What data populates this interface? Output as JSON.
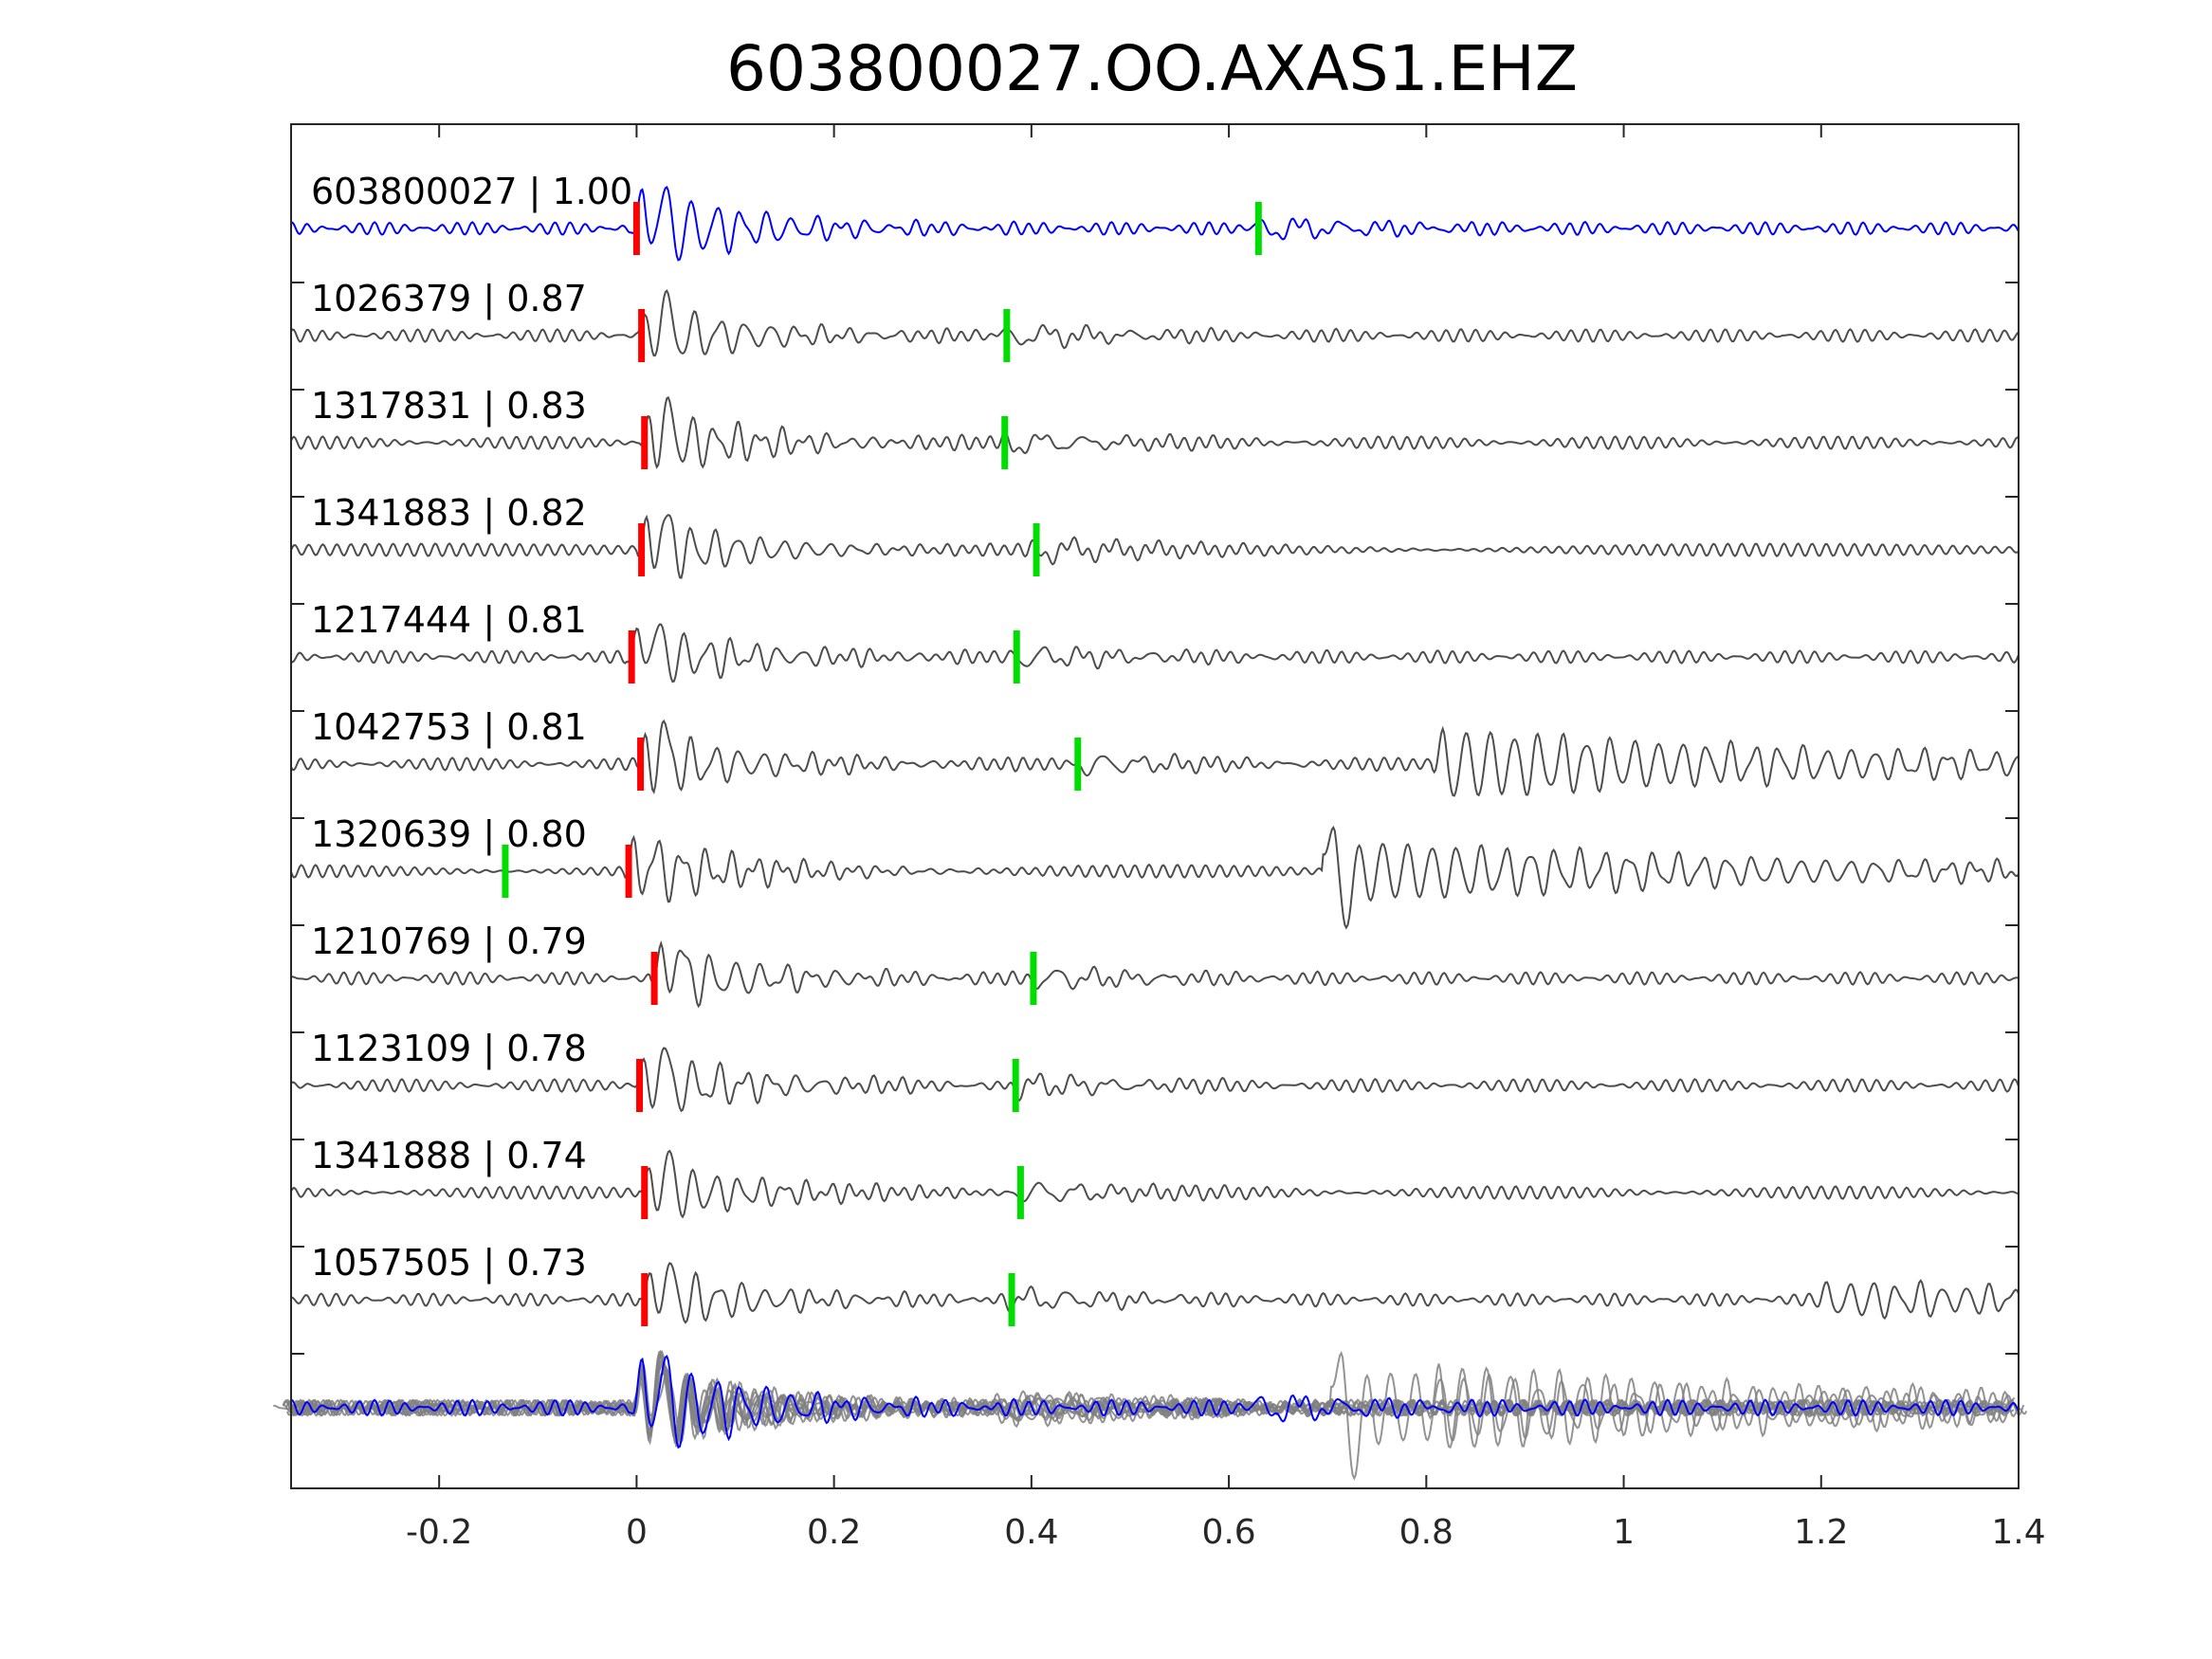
{
  "chart_data": {
    "type": "line",
    "title": "603800027.OO.AXAS1.EHZ",
    "xlabel": "",
    "ylabel": "",
    "xlim": [
      -0.35,
      1.4
    ],
    "x_ticks": [
      -0.2,
      0,
      0.2,
      0.4,
      0.6,
      0.8,
      1,
      1.2,
      1.4
    ],
    "x_tick_labels": [
      "-0.2",
      "0",
      "0.2",
      "0.4",
      "0.6",
      "0.8",
      "1",
      "1.2",
      "1.4"
    ],
    "grid": false,
    "colors": {
      "template": "#0000ff",
      "trace": "#4d4d4d",
      "stack": "#808080",
      "p_pick": "#ff0000",
      "s_pick": "#00dd00",
      "axis": "#262626"
    },
    "series": [
      {
        "id": "603800027",
        "cc": "1.00",
        "label": "603800027 | 1.00",
        "p_pick": 0.0,
        "s_pick": 0.63,
        "template": true,
        "late_burst": null
      },
      {
        "id": "1026379",
        "cc": "0.87",
        "label": "1026379 | 0.87",
        "p_pick": 0.005,
        "s_pick": 0.375,
        "late_burst": null
      },
      {
        "id": "1317831",
        "cc": "0.83",
        "label": "1317831 | 0.83",
        "p_pick": 0.008,
        "s_pick": 0.373,
        "late_burst": null
      },
      {
        "id": "1341883",
        "cc": "0.82",
        "label": "1341883 | 0.82",
        "p_pick": 0.005,
        "s_pick": 0.405,
        "late_burst": null
      },
      {
        "id": "1217444",
        "cc": "0.81",
        "label": "1217444 | 0.81",
        "p_pick": -0.005,
        "s_pick": 0.385,
        "late_burst": null
      },
      {
        "id": "1042753",
        "cc": "0.81",
        "label": "1042753 | 0.81",
        "p_pick": 0.004,
        "s_pick": 0.447,
        "late_burst": 0.81
      },
      {
        "id": "1320639",
        "cc": "0.80",
        "label": "1320639 | 0.80",
        "p_pick": -0.008,
        "s_pick": -0.133,
        "late_burst": 0.7
      },
      {
        "id": "1210769",
        "cc": "0.79",
        "label": "1210769 | 0.79",
        "p_pick": 0.018,
        "s_pick": 0.402,
        "late_burst": null
      },
      {
        "id": "1123109",
        "cc": "0.78",
        "label": "1123109 | 0.78",
        "p_pick": 0.003,
        "s_pick": 0.384,
        "late_burst": null
      },
      {
        "id": "1341888",
        "cc": "0.74",
        "label": "1341888 | 0.74",
        "p_pick": 0.008,
        "s_pick": 0.389,
        "late_burst": null
      },
      {
        "id": "1057505",
        "cc": "0.73",
        "label": "1057505 | 0.73",
        "p_pick": 0.008,
        "s_pick": 0.38,
        "late_burst": 1.2
      }
    ]
  }
}
